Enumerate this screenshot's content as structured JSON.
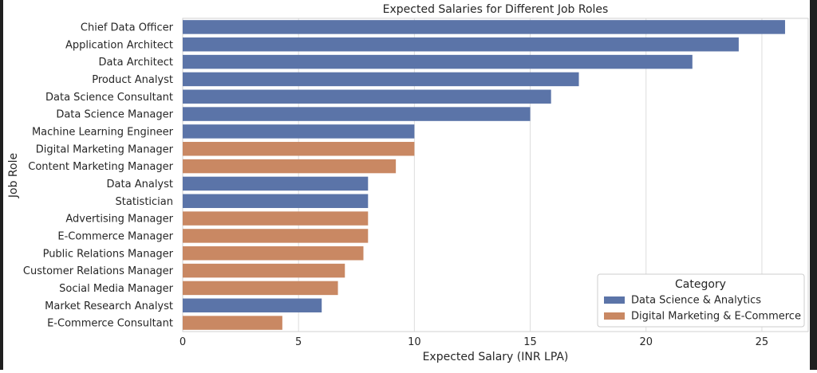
{
  "chart_data": {
    "type": "bar",
    "orientation": "horizontal",
    "title": "Expected Salaries for Different Job Roles",
    "xlabel": "Expected Salary (INR LPA)",
    "ylabel": "Job Role",
    "xlim": [
      0,
      27
    ],
    "xticks": [
      0,
      5,
      10,
      15,
      20,
      25
    ],
    "grid": true,
    "legend": {
      "title": "Category",
      "position": "bottom-right",
      "entries": [
        {
          "name": "Data Science & Analytics",
          "color": "#5b74a8"
        },
        {
          "name": "Digital Marketing & E-Commerce",
          "color": "#c98863"
        }
      ]
    },
    "categories": [
      "Chief Data Officer",
      "Application Architect",
      "Data Architect",
      "Product Analyst",
      "Data Science Consultant",
      "Data Science Manager",
      "Machine Learning Engineer",
      "Digital Marketing Manager",
      "Content Marketing Manager",
      "Data Analyst",
      "Statistician",
      "Advertising Manager",
      "E-Commerce Manager",
      "Public Relations Manager",
      "Customer Relations Manager",
      "Social Media Manager",
      "Market Research Analyst",
      "E-Commerce Consultant"
    ],
    "values": [
      26,
      24,
      22,
      17.1,
      15.9,
      15,
      10,
      10,
      9.2,
      8,
      8,
      8,
      8,
      7.8,
      7,
      6.7,
      6,
      4.3
    ],
    "series_index": [
      0,
      0,
      0,
      0,
      0,
      0,
      0,
      1,
      1,
      0,
      0,
      1,
      1,
      1,
      1,
      1,
      0,
      1
    ]
  },
  "colors": {
    "grid": "#dddddd",
    "spine": "#d0d0d0",
    "text": "#262626"
  }
}
